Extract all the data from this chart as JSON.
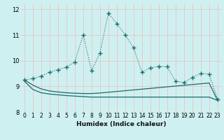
{
  "xlabel": "Humidex (Indice chaleur)",
  "bg_color": "#cff0f0",
  "grid_color": "#e8c8c8",
  "line_color": "#1a6b6b",
  "xlim": [
    -0.5,
    23.5
  ],
  "ylim": [
    8,
    12.2
  ],
  "yticks": [
    8,
    9,
    10,
    11,
    12
  ],
  "xticks": [
    0,
    1,
    2,
    3,
    4,
    5,
    6,
    7,
    8,
    9,
    10,
    11,
    12,
    13,
    14,
    15,
    16,
    17,
    18,
    19,
    20,
    21,
    22,
    23
  ],
  "series1_x": [
    0,
    1,
    2,
    3,
    4,
    5,
    6,
    7,
    8,
    9,
    10,
    11,
    12,
    13,
    14,
    15,
    16,
    17,
    18,
    19,
    20,
    21,
    22,
    23
  ],
  "series1_y": [
    9.25,
    9.3,
    9.4,
    9.55,
    9.65,
    9.75,
    9.95,
    11.0,
    9.6,
    10.3,
    11.85,
    11.45,
    11.0,
    10.5,
    9.55,
    9.72,
    9.78,
    9.76,
    9.2,
    9.15,
    9.35,
    9.5,
    9.48,
    8.5
  ],
  "series2_x": [
    0,
    1,
    2,
    3,
    4,
    5,
    6,
    7,
    8,
    9,
    10,
    11,
    12,
    13,
    14,
    15,
    16,
    17,
    18,
    19,
    20,
    21,
    22,
    23
  ],
  "series2_y": [
    9.25,
    9.05,
    8.9,
    8.82,
    8.78,
    8.75,
    8.73,
    8.72,
    8.72,
    8.74,
    8.77,
    8.8,
    8.83,
    8.86,
    8.89,
    8.92,
    8.95,
    8.98,
    9.01,
    9.04,
    9.07,
    9.1,
    9.13,
    8.45
  ],
  "series3_x": [
    0,
    1,
    2,
    3,
    4,
    5,
    6,
    7,
    8,
    9,
    10,
    11,
    12,
    13,
    14,
    15,
    16,
    17,
    18,
    19,
    20,
    21,
    22,
    23
  ],
  "series3_y": [
    9.2,
    8.88,
    8.75,
    8.7,
    8.67,
    8.64,
    8.62,
    8.6,
    8.58,
    8.58,
    8.58,
    8.58,
    8.58,
    8.58,
    8.58,
    8.58,
    8.58,
    8.58,
    8.58,
    8.58,
    8.58,
    8.58,
    8.58,
    8.45
  ]
}
